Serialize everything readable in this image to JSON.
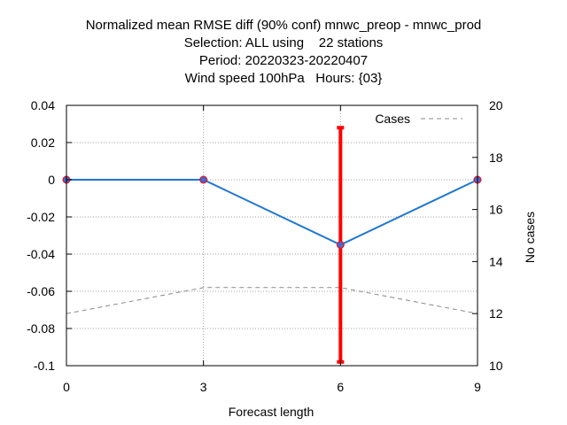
{
  "chart_data": {
    "type": "line",
    "title_lines": [
      "Normalized mean RMSE diff (90% conf) mnwc_preop - mnwc_prod",
      "Selection: ALL using    22 stations",
      "Period: 20220323-20220407",
      "Wind speed 100hPa   Hours: {03}"
    ],
    "xlabel": "Forecast length",
    "ylabel": "",
    "y2label": "No cases",
    "x": [
      0,
      3,
      6,
      9
    ],
    "xlim": [
      0,
      9
    ],
    "ylim": [
      -0.1,
      0.04
    ],
    "y2lim": [
      10,
      20
    ],
    "x_ticks": [
      "0",
      "3",
      "6",
      "9"
    ],
    "y_ticks": [
      "0.04",
      "0.02",
      "0",
      "-0.02",
      "-0.04",
      "-0.06",
      "-0.08",
      "-0.1"
    ],
    "y2_ticks": [
      "20",
      "18",
      "16",
      "14",
      "12",
      "10"
    ],
    "grid": true,
    "legend_position": "top-right",
    "series": [
      {
        "values": [
          0.0,
          0.0,
          -0.035,
          0.0
        ],
        "color": "#1f77d4",
        "axis": "left"
      },
      {
        "name": "Cases",
        "values": [
          12,
          13,
          13,
          12
        ],
        "color": "#888888",
        "axis": "right",
        "style": "dashed"
      }
    ],
    "error_bars": [
      {
        "x": 6,
        "low": -0.098,
        "high": 0.028,
        "color": "#ff0000"
      }
    ]
  }
}
